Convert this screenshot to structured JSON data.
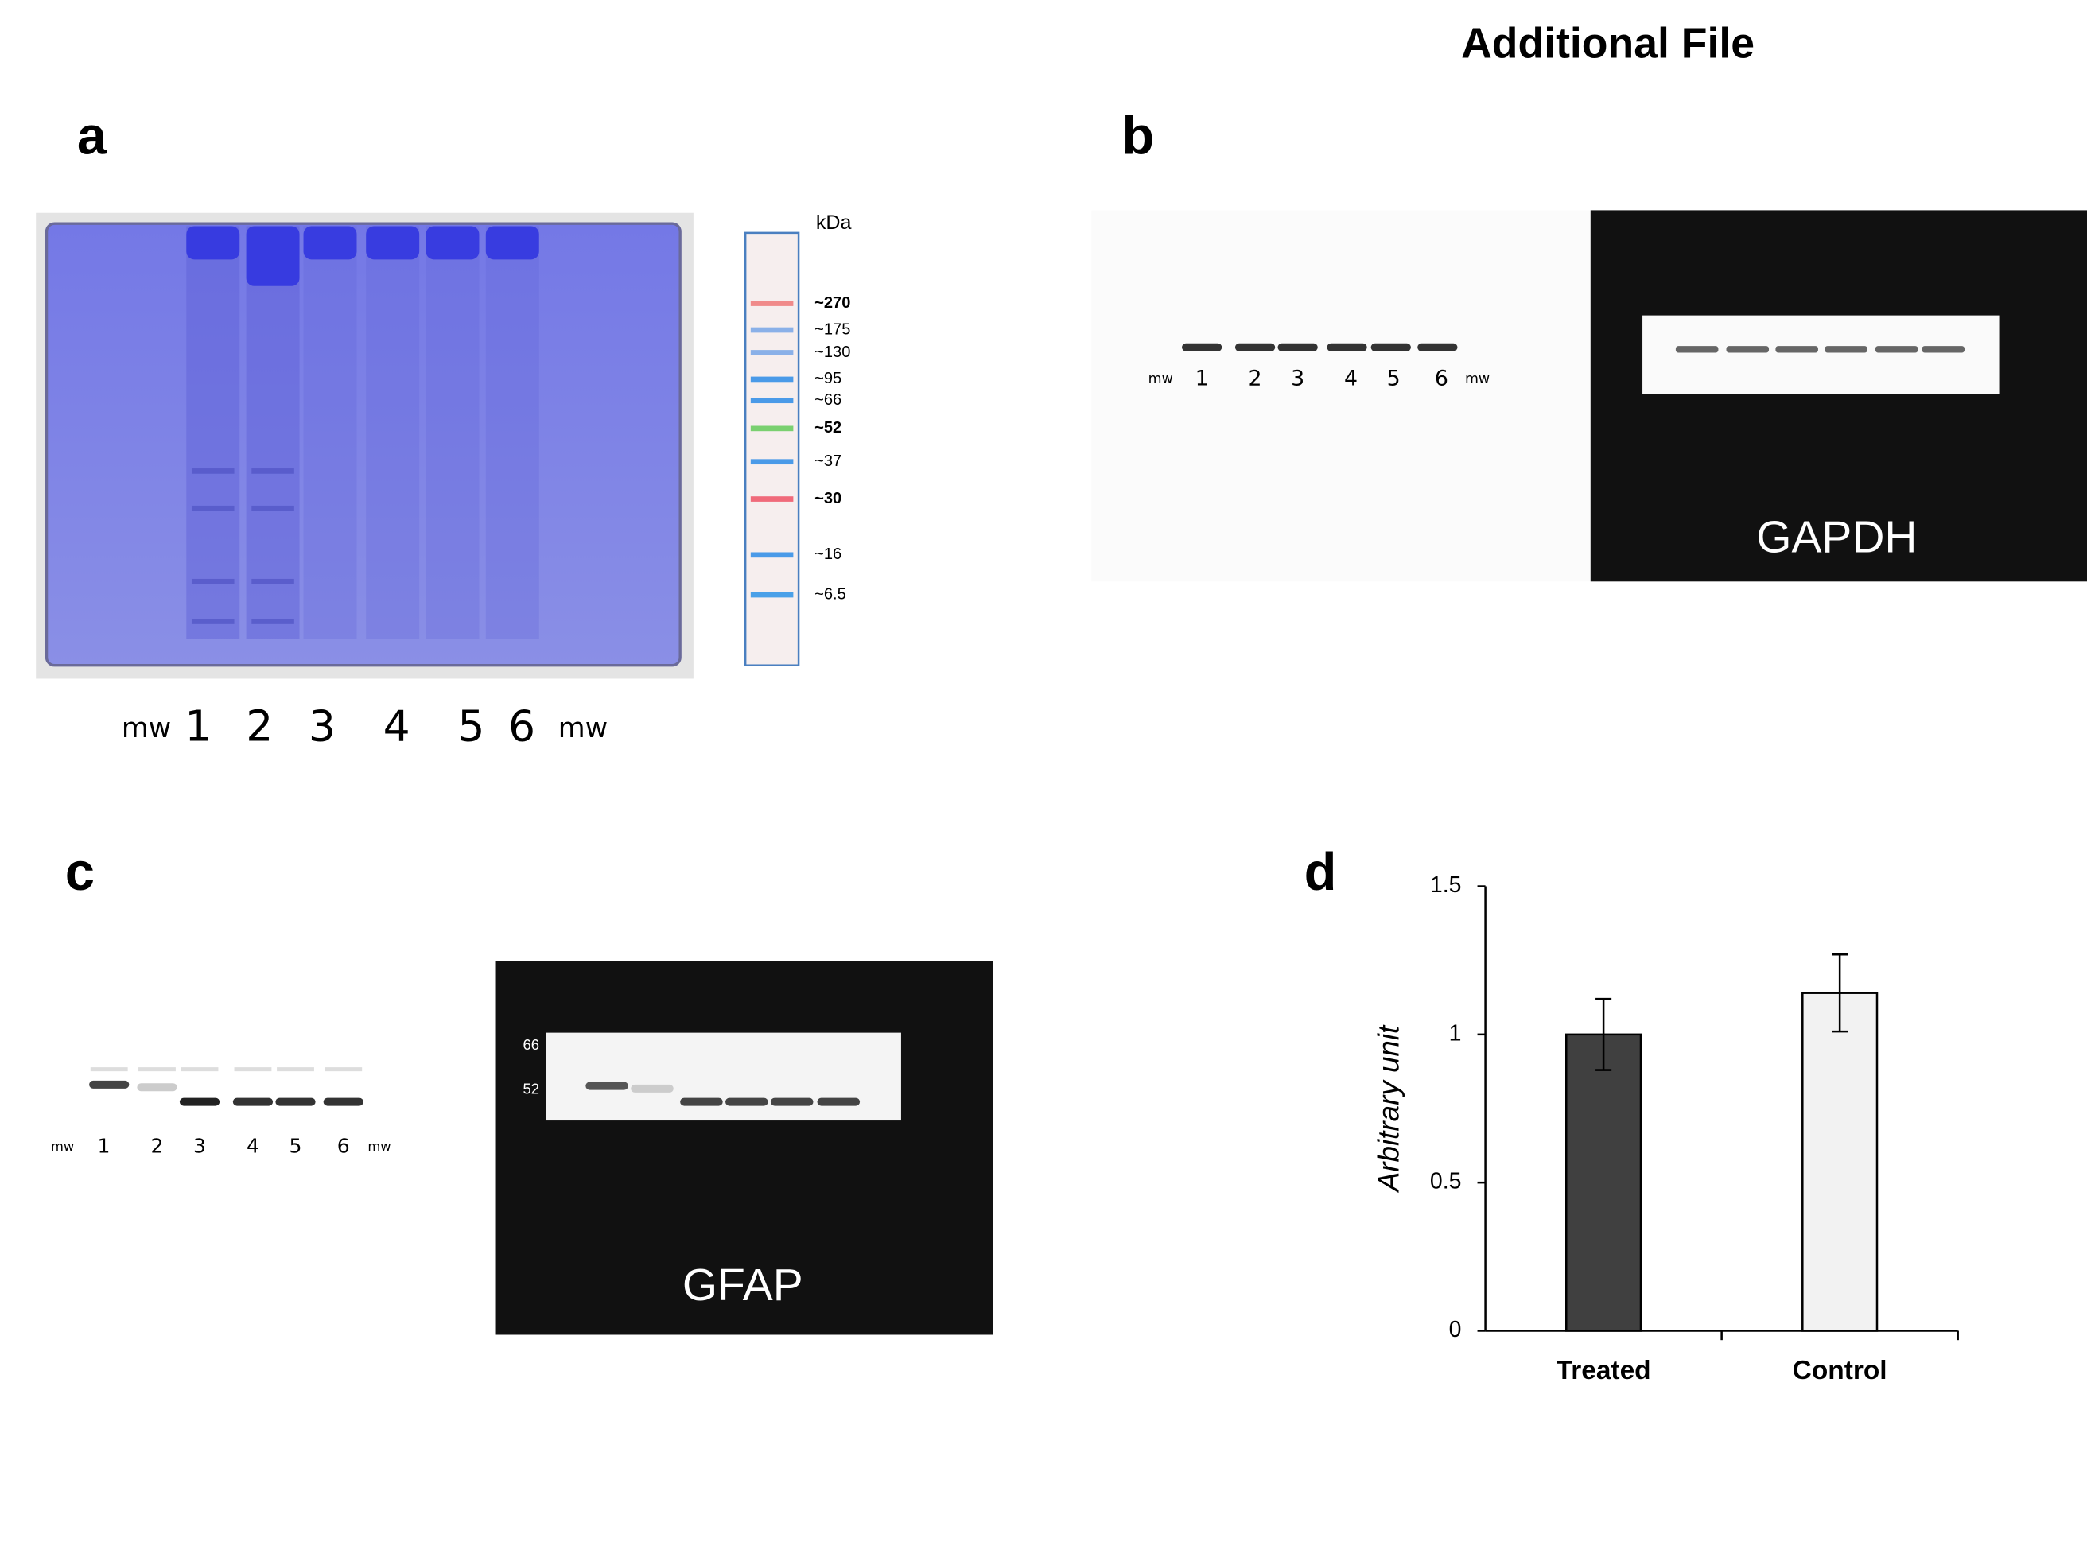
{
  "title": "Additional File",
  "panels": {
    "a": {
      "panel_label": "a",
      "lane_labels": [
        "mw",
        "1",
        "2",
        "3",
        "4",
        "5",
        "6",
        "mw"
      ],
      "ladder_unit": "kDa",
      "ladder_labels": [
        "~270",
        "~175",
        "~130",
        "~95",
        "~66",
        "~52",
        "~37",
        "~30",
        "~16",
        "~6.5"
      ]
    },
    "b": {
      "panel_label": "b",
      "lane_labels": [
        "mw",
        "1",
        "2",
        "3",
        "4",
        "5",
        "6",
        "mw"
      ],
      "stain": "GAPDH"
    },
    "c": {
      "panel_label": "c",
      "lane_labels": [
        "mw",
        "1",
        "2",
        "3",
        "4",
        "5",
        "6",
        "mw"
      ],
      "marker_labels": [
        "66",
        "52"
      ],
      "stain": "GFAP"
    }
  },
  "chart_data": {
    "type": "bar",
    "panel_label": "d",
    "y_label": "Arbitrary unit",
    "categories": [
      "Treated",
      "Control"
    ],
    "values": [
      1.0,
      1.14
    ],
    "errors": [
      0.12,
      0.13
    ],
    "colors": [
      "#404040",
      "#f2f2f2"
    ],
    "ylim": [
      0,
      1.5
    ],
    "yticks": [
      0,
      0.5,
      1,
      1.5
    ]
  }
}
